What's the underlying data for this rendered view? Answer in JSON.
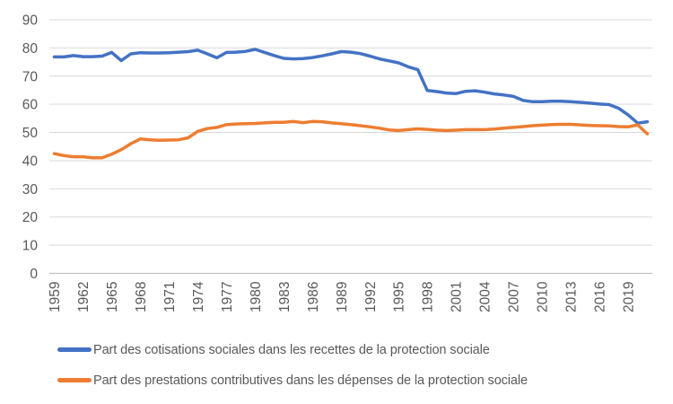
{
  "chart_data": {
    "type": "line",
    "title": "",
    "xlabel": "",
    "ylabel": "",
    "ylim": [
      0,
      90
    ],
    "yticks": [
      0,
      10,
      20,
      30,
      40,
      50,
      60,
      70,
      80,
      90
    ],
    "xticklabels": [
      "1959",
      "1962",
      "1965",
      "1968",
      "1971",
      "1974",
      "1977",
      "1980",
      "1983",
      "1986",
      "1989",
      "1992",
      "1995",
      "1998",
      "2001",
      "2004",
      "2007",
      "2010",
      "2013",
      "2016",
      "2019"
    ],
    "grid": "horizontal",
    "legend_position": "bottom-left",
    "gridline_color": "#d9d9d9",
    "axis_color": "#bfbfbf",
    "tick_label_color": "#595959",
    "legend_text_color": "#595959",
    "x": [
      1959,
      1960,
      1961,
      1962,
      1963,
      1964,
      1965,
      1966,
      1967,
      1968,
      1969,
      1970,
      1971,
      1972,
      1973,
      1974,
      1975,
      1976,
      1977,
      1978,
      1979,
      1980,
      1981,
      1982,
      1983,
      1984,
      1985,
      1986,
      1987,
      1988,
      1989,
      1990,
      1991,
      1992,
      1993,
      1994,
      1995,
      1996,
      1997,
      1998,
      1999,
      2000,
      2001,
      2002,
      2003,
      2004,
      2005,
      2006,
      2007,
      2008,
      2009,
      2010,
      2011,
      2012,
      2013,
      2014,
      2015,
      2016,
      2017,
      2018,
      2019,
      2020,
      2021
    ],
    "series": [
      {
        "name": "Part des cotisations sociales dans les recettes de la protection sociale",
        "color": "#4472C4",
        "values": [
          76.8,
          76.8,
          77.3,
          76.9,
          76.9,
          77.1,
          78.4,
          75.5,
          77.9,
          78.3,
          78.2,
          78.2,
          78.3,
          78.5,
          78.7,
          79.2,
          77.9,
          76.5,
          78.4,
          78.5,
          78.8,
          79.5,
          78.4,
          77.3,
          76.3,
          76.1,
          76.2,
          76.6,
          77.2,
          77.9,
          78.7,
          78.5,
          78.0,
          77.1,
          76.1,
          75.4,
          74.7,
          73.3,
          72.3,
          64.9,
          64.5,
          64.0,
          63.8,
          64.6,
          64.8,
          64.3,
          63.7,
          63.3,
          62.8,
          61.4,
          60.9,
          60.9,
          61.1,
          61.1,
          60.9,
          60.7,
          60.4,
          60.1,
          59.9,
          58.6,
          56.2,
          53.3,
          53.8
        ]
      },
      {
        "name": "Part des prestations contributives dans les dépenses de la protection sociale",
        "color": "#ED7D31",
        "values": [
          42.5,
          41.8,
          41.4,
          41.4,
          41.0,
          41.0,
          42.3,
          43.9,
          46.0,
          47.7,
          47.4,
          47.2,
          47.3,
          47.4,
          48.1,
          50.4,
          51.4,
          51.8,
          52.8,
          53.0,
          53.1,
          53.2,
          53.4,
          53.6,
          53.6,
          53.9,
          53.5,
          53.9,
          53.8,
          53.4,
          53.1,
          52.8,
          52.4,
          52.0,
          51.5,
          50.9,
          50.7,
          51.0,
          51.3,
          51.1,
          50.8,
          50.7,
          50.8,
          51.0,
          51.0,
          51.0,
          51.2,
          51.5,
          51.8,
          52.1,
          52.4,
          52.6,
          52.8,
          52.9,
          52.9,
          52.7,
          52.5,
          52.4,
          52.3,
          52.1,
          52.0,
          52.7,
          49.5
        ]
      }
    ]
  }
}
